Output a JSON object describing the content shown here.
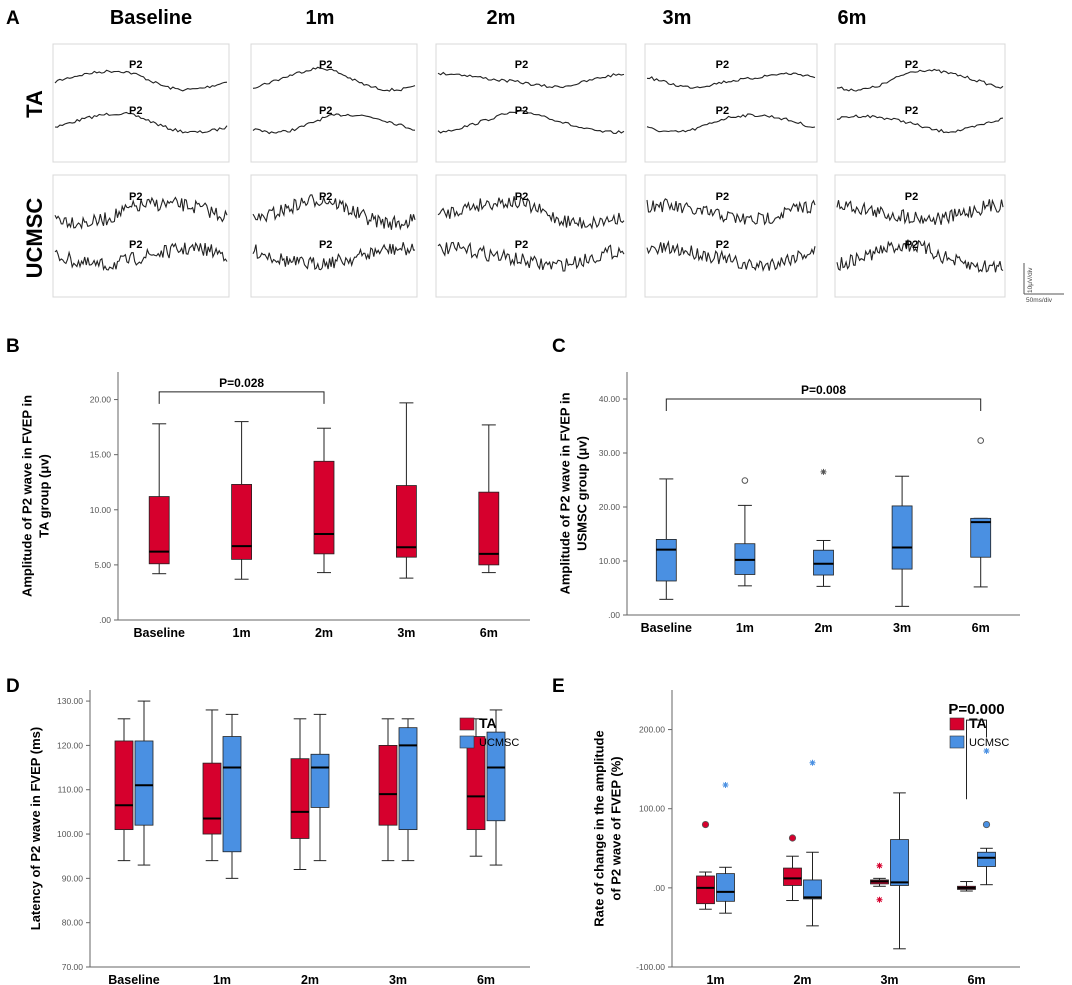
{
  "figure": {
    "panel_labels": [
      "A",
      "B",
      "C",
      "D",
      "E"
    ],
    "wave_label": "P2",
    "columns": [
      "Baseline",
      "1m",
      "2m",
      "3m",
      "6m"
    ],
    "rows": [
      "TA",
      "UCMSC"
    ],
    "scale_bar": {
      "vertical": "10μV/div",
      "horizontal": "50ms/div"
    }
  },
  "colors": {
    "ta": "#d6002d",
    "ucmsc": "#4a90e2",
    "axis": "#666666",
    "trace": "#222222",
    "frame": "#d8d8d8"
  },
  "chart_data": [
    {
      "id": "B",
      "type": "box",
      "ylabel_lines": [
        "Amplitude of P2 wave in FVEP in",
        "TA group (μv)"
      ],
      "categories": [
        "Baseline",
        "1m",
        "2m",
        "3m",
        "6m"
      ],
      "yticks": [
        ".00",
        "5.00",
        "10.00",
        "15.00",
        "20.00"
      ],
      "ytick_values": [
        0,
        5,
        10,
        15,
        20
      ],
      "ylim": [
        0,
        22.5
      ],
      "series": [
        {
          "name": "TA",
          "color": "#d6002d",
          "boxes": [
            {
              "min": 4.2,
              "q1": 5.1,
              "median": 6.2,
              "q3": 11.2,
              "max": 17.8
            },
            {
              "min": 3.7,
              "q1": 5.5,
              "median": 6.7,
              "q3": 12.3,
              "max": 18.0
            },
            {
              "min": 4.3,
              "q1": 6.0,
              "median": 7.8,
              "q3": 14.4,
              "max": 17.4
            },
            {
              "min": 3.8,
              "q1": 5.7,
              "median": 6.6,
              "q3": 12.2,
              "max": 19.7
            },
            {
              "min": 4.3,
              "q1": 5.0,
              "median": 6.0,
              "q3": 11.6,
              "max": 17.7
            }
          ]
        }
      ],
      "annotation": {
        "text": "P=0.028",
        "from": 0,
        "to": 2,
        "y": 20.7
      }
    },
    {
      "id": "C",
      "type": "box",
      "ylabel_lines": [
        "Amplitude of P2 wave in FVEP in",
        "USMSC group (μv)"
      ],
      "categories": [
        "Baseline",
        "1m",
        "2m",
        "3m",
        "6m"
      ],
      "yticks": [
        ".00",
        "10.00",
        "20.00",
        "30.00",
        "40.00"
      ],
      "ytick_values": [
        0,
        10,
        20,
        30,
        40
      ],
      "ylim": [
        0,
        45
      ],
      "series": [
        {
          "name": "UCMSC",
          "color": "#4a90e2",
          "boxes": [
            {
              "min": 2.9,
              "q1": 6.3,
              "median": 12.1,
              "q3": 14.0,
              "max": 25.2
            },
            {
              "min": 5.4,
              "q1": 7.5,
              "median": 10.2,
              "q3": 13.2,
              "max": 20.3,
              "outliers": [
                {
                  "v": 24.9,
                  "m": "circle"
                }
              ]
            },
            {
              "min": 5.3,
              "q1": 7.4,
              "median": 9.5,
              "q3": 12.0,
              "max": 13.8,
              "outliers": [
                {
                  "v": 26.5,
                  "m": "star"
                }
              ]
            },
            {
              "min": 1.6,
              "q1": 8.5,
              "median": 12.5,
              "q3": 20.2,
              "max": 25.7
            },
            {
              "min": 5.2,
              "q1": 10.7,
              "median": 17.2,
              "q3": 17.9,
              "max": 17.9,
              "outliers": [
                {
                  "v": 32.3,
                  "m": "circle"
                }
              ]
            }
          ]
        }
      ],
      "annotation": {
        "text": "P=0.008",
        "from": 0,
        "to": 4,
        "y": 40.0
      }
    },
    {
      "id": "D",
      "type": "box",
      "ylabel_lines": [
        "Latency of P2 wave in FVEP (ms)"
      ],
      "categories": [
        "Baseline",
        "1m",
        "2m",
        "3m",
        "6m"
      ],
      "yticks": [
        "70.00",
        "80.00",
        "90.00",
        "100.00",
        "110.00",
        "120.00",
        "130.00"
      ],
      "ytick_values": [
        70,
        80,
        90,
        100,
        110,
        120,
        130
      ],
      "ylim": [
        70,
        132.5
      ],
      "legend": [
        "TA",
        "UCMSC"
      ],
      "series": [
        {
          "name": "TA",
          "color": "#d6002d",
          "boxes": [
            {
              "min": 94,
              "q1": 101,
              "median": 106.5,
              "q3": 121,
              "max": 126
            },
            {
              "min": 94,
              "q1": 100,
              "median": 103.5,
              "q3": 116,
              "max": 128
            },
            {
              "min": 92,
              "q1": 99,
              "median": 105,
              "q3": 117,
              "max": 126
            },
            {
              "min": 94,
              "q1": 102,
              "median": 109,
              "q3": 120,
              "max": 126
            },
            {
              "min": 95,
              "q1": 101,
              "median": 108.5,
              "q3": 122,
              "max": 126
            }
          ]
        },
        {
          "name": "UCMSC",
          "color": "#4a90e2",
          "boxes": [
            {
              "min": 93,
              "q1": 102,
              "median": 111,
              "q3": 121,
              "max": 130
            },
            {
              "min": 90,
              "q1": 96,
              "median": 115,
              "q3": 122,
              "max": 127
            },
            {
              "min": 94,
              "q1": 106,
              "median": 115,
              "q3": 118,
              "max": 127
            },
            {
              "min": 94,
              "q1": 101,
              "median": 120,
              "q3": 124,
              "max": 126
            },
            {
              "min": 93,
              "q1": 103,
              "median": 115,
              "q3": 123,
              "max": 128
            }
          ]
        }
      ]
    },
    {
      "id": "E",
      "type": "box",
      "ylabel_lines": [
        "Rate of change in the amplitude",
        "of P2 wave of FVEP (%)"
      ],
      "categories": [
        "1m",
        "2m",
        "3m",
        "6m"
      ],
      "yticks": [
        "-100.00",
        ".00",
        "100.00",
        "200.00"
      ],
      "ytick_values": [
        -100,
        0,
        100,
        200
      ],
      "ylim": [
        -100,
        250
      ],
      "legend": [
        "TA",
        "UCMSC"
      ],
      "series": [
        {
          "name": "TA",
          "color": "#d6002d",
          "boxes": [
            {
              "min": -27,
              "q1": -20,
              "median": 0,
              "q3": 15,
              "max": 20,
              "outliers": [
                {
                  "v": 80,
                  "m": "circle"
                }
              ]
            },
            {
              "min": -16,
              "q1": 3,
              "median": 12,
              "q3": 25,
              "max": 40,
              "outliers": [
                {
                  "v": 63,
                  "m": "circle"
                }
              ]
            },
            {
              "min": 2,
              "q1": 5,
              "median": 8,
              "q3": 10,
              "max": 12,
              "outliers": [
                {
                  "v": 28,
                  "m": "star"
                },
                {
                  "v": -15,
                  "m": "star"
                }
              ]
            },
            {
              "min": -4,
              "q1": -2,
              "median": 0,
              "q3": 2,
              "max": 8
            }
          ]
        },
        {
          "name": "UCMSC",
          "color": "#4a90e2",
          "boxes": [
            {
              "min": -32,
              "q1": -17,
              "median": -5,
              "q3": 18,
              "max": 26,
              "outliers": [
                {
                  "v": 130,
                  "m": "star"
                }
              ]
            },
            {
              "min": -48,
              "q1": -14,
              "median": -12,
              "q3": 10,
              "max": 45,
              "outliers": [
                {
                  "v": 158,
                  "m": "star"
                }
              ]
            },
            {
              "min": -77,
              "q1": 3,
              "median": 7,
              "q3": 61,
              "max": 120
            },
            {
              "min": 4,
              "q1": 27,
              "median": 38,
              "q3": 45,
              "max": 50,
              "outliers": [
                {
                  "v": 80,
                  "m": "circle"
                },
                {
                  "v": 173,
                  "m": "star"
                }
              ]
            }
          ]
        }
      ],
      "annotation": {
        "text": "P=0.000",
        "from": 3,
        "to": 3,
        "y": 212
      }
    }
  ]
}
